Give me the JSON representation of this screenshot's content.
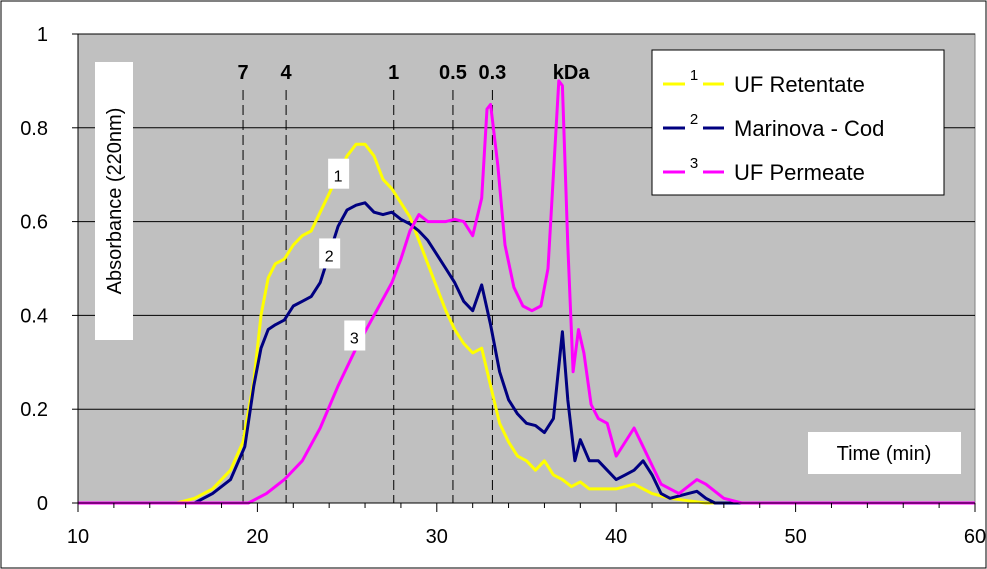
{
  "chart_data": {
    "type": "line",
    "xlabel": "Time (min)",
    "ylabel": "Absorbance (220nm)",
    "xlim": [
      10,
      60
    ],
    "ylim": [
      0,
      1
    ],
    "x_ticks": [
      "10",
      "20",
      "30",
      "40",
      "50",
      "60"
    ],
    "x_tick_values": [
      10,
      20,
      30,
      40,
      50,
      60
    ],
    "y_ticks": [
      "0",
      "0.2",
      "0.4",
      "0.6",
      "0.8",
      "1"
    ],
    "y_tick_values": [
      0,
      0.2,
      0.4,
      0.6,
      0.8,
      1
    ],
    "grid": "horizontal",
    "plot_background": "#c0c0c0",
    "legend_position": "top-right",
    "mw_markers": [
      {
        "label": "7",
        "x": 19.2
      },
      {
        "label": "4",
        "x": 21.6
      },
      {
        "label": "1",
        "x": 27.6
      },
      {
        "label": "0.5",
        "x": 30.9
      },
      {
        "label": "0.3",
        "x": 33.1
      }
    ],
    "mw_unit": "kDa",
    "series": [
      {
        "name": "UF Retentate",
        "number": "1",
        "color": "#ffff00",
        "points": [
          [
            10,
            0
          ],
          [
            15.5,
            0
          ],
          [
            16.5,
            0.01
          ],
          [
            17.5,
            0.03
          ],
          [
            18.5,
            0.07
          ],
          [
            19.2,
            0.13
          ],
          [
            19.8,
            0.26
          ],
          [
            20.2,
            0.4
          ],
          [
            20.6,
            0.48
          ],
          [
            21.0,
            0.51
          ],
          [
            21.5,
            0.52
          ],
          [
            22.0,
            0.55
          ],
          [
            22.5,
            0.57
          ],
          [
            23.0,
            0.58
          ],
          [
            23.5,
            0.62
          ],
          [
            24.0,
            0.66
          ],
          [
            24.5,
            0.7
          ],
          [
            25.0,
            0.74
          ],
          [
            25.5,
            0.765
          ],
          [
            26.0,
            0.765
          ],
          [
            26.5,
            0.74
          ],
          [
            27.0,
            0.69
          ],
          [
            27.5,
            0.67
          ],
          [
            28.0,
            0.64
          ],
          [
            28.5,
            0.61
          ],
          [
            29.0,
            0.56
          ],
          [
            29.5,
            0.51
          ],
          [
            30.0,
            0.46
          ],
          [
            30.5,
            0.41
          ],
          [
            31.0,
            0.37
          ],
          [
            31.5,
            0.34
          ],
          [
            32.0,
            0.32
          ],
          [
            32.5,
            0.33
          ],
          [
            33.0,
            0.25
          ],
          [
            33.5,
            0.17
          ],
          [
            34.0,
            0.13
          ],
          [
            34.5,
            0.1
          ],
          [
            35.0,
            0.09
          ],
          [
            35.5,
            0.07
          ],
          [
            36.0,
            0.09
          ],
          [
            36.5,
            0.06
          ],
          [
            37.0,
            0.05
          ],
          [
            37.5,
            0.035
          ],
          [
            38.0,
            0.045
          ],
          [
            38.5,
            0.03
          ],
          [
            39.0,
            0.03
          ],
          [
            40.0,
            0.03
          ],
          [
            41.0,
            0.04
          ],
          [
            42.0,
            0.02
          ],
          [
            43.0,
            0.01
          ],
          [
            44.0,
            0.005
          ],
          [
            45.0,
            0
          ],
          [
            60,
            0
          ]
        ]
      },
      {
        "name": "Marinova - Cod",
        "number": "2",
        "color": "#000080",
        "points": [
          [
            10,
            0
          ],
          [
            16.5,
            0
          ],
          [
            17.5,
            0.02
          ],
          [
            18.5,
            0.05
          ],
          [
            19.3,
            0.12
          ],
          [
            19.8,
            0.25
          ],
          [
            20.2,
            0.33
          ],
          [
            20.6,
            0.37
          ],
          [
            21.0,
            0.38
          ],
          [
            21.5,
            0.39
          ],
          [
            22.0,
            0.42
          ],
          [
            22.5,
            0.43
          ],
          [
            23.0,
            0.44
          ],
          [
            23.5,
            0.47
          ],
          [
            24.0,
            0.53
          ],
          [
            24.5,
            0.59
          ],
          [
            25.0,
            0.625
          ],
          [
            25.5,
            0.635
          ],
          [
            26.0,
            0.64
          ],
          [
            26.5,
            0.62
          ],
          [
            27.0,
            0.615
          ],
          [
            27.5,
            0.62
          ],
          [
            28.0,
            0.605
          ],
          [
            28.5,
            0.595
          ],
          [
            29.0,
            0.58
          ],
          [
            29.5,
            0.56
          ],
          [
            30.0,
            0.53
          ],
          [
            30.5,
            0.5
          ],
          [
            31.0,
            0.47
          ],
          [
            31.5,
            0.43
          ],
          [
            32.0,
            0.41
          ],
          [
            32.5,
            0.465
          ],
          [
            33.0,
            0.38
          ],
          [
            33.5,
            0.28
          ],
          [
            34.0,
            0.22
          ],
          [
            34.5,
            0.19
          ],
          [
            35.0,
            0.17
          ],
          [
            35.5,
            0.165
          ],
          [
            36.0,
            0.15
          ],
          [
            36.5,
            0.18
          ],
          [
            37.0,
            0.365
          ],
          [
            37.3,
            0.22
          ],
          [
            37.7,
            0.09
          ],
          [
            38.0,
            0.135
          ],
          [
            38.5,
            0.09
          ],
          [
            39.0,
            0.09
          ],
          [
            39.5,
            0.07
          ],
          [
            40.0,
            0.05
          ],
          [
            40.5,
            0.06
          ],
          [
            41.0,
            0.07
          ],
          [
            41.5,
            0.09
          ],
          [
            42.0,
            0.06
          ],
          [
            42.5,
            0.02
          ],
          [
            43.0,
            0.01
          ],
          [
            44.0,
            0.02
          ],
          [
            44.5,
            0.025
          ],
          [
            45.0,
            0.01
          ],
          [
            45.5,
            0
          ],
          [
            60,
            0
          ]
        ]
      },
      {
        "name": "UF Permeate",
        "number": "3",
        "color": "#ff00ff",
        "points": [
          [
            10,
            0
          ],
          [
            19.5,
            0
          ],
          [
            20.5,
            0.02
          ],
          [
            21.5,
            0.05
          ],
          [
            22.5,
            0.09
          ],
          [
            23.5,
            0.16
          ],
          [
            24.5,
            0.25
          ],
          [
            25.5,
            0.33
          ],
          [
            26.5,
            0.4
          ],
          [
            27.5,
            0.47
          ],
          [
            28.0,
            0.52
          ],
          [
            28.5,
            0.58
          ],
          [
            29.0,
            0.615
          ],
          [
            29.5,
            0.6
          ],
          [
            30.0,
            0.6
          ],
          [
            30.5,
            0.6
          ],
          [
            31.0,
            0.605
          ],
          [
            31.5,
            0.6
          ],
          [
            32.0,
            0.57
          ],
          [
            32.5,
            0.65
          ],
          [
            32.8,
            0.84
          ],
          [
            33.0,
            0.85
          ],
          [
            33.4,
            0.72
          ],
          [
            33.8,
            0.55
          ],
          [
            34.3,
            0.46
          ],
          [
            34.8,
            0.42
          ],
          [
            35.3,
            0.41
          ],
          [
            35.8,
            0.42
          ],
          [
            36.2,
            0.5
          ],
          [
            36.5,
            0.7
          ],
          [
            36.8,
            0.9
          ],
          [
            37.0,
            0.89
          ],
          [
            37.3,
            0.55
          ],
          [
            37.6,
            0.28
          ],
          [
            37.9,
            0.37
          ],
          [
            38.2,
            0.32
          ],
          [
            38.6,
            0.21
          ],
          [
            39.0,
            0.18
          ],
          [
            39.5,
            0.17
          ],
          [
            40.0,
            0.1
          ],
          [
            40.5,
            0.13
          ],
          [
            41.0,
            0.16
          ],
          [
            41.5,
            0.12
          ],
          [
            42.0,
            0.08
          ],
          [
            42.5,
            0.04
          ],
          [
            43.5,
            0.02
          ],
          [
            44.5,
            0.05
          ],
          [
            45.0,
            0.04
          ],
          [
            46.0,
            0.01
          ],
          [
            47.0,
            0
          ],
          [
            60,
            0
          ]
        ]
      }
    ],
    "curve_labels": [
      {
        "text": "1",
        "x": 24.5,
        "y": 0.7
      },
      {
        "text": "2",
        "x": 24.0,
        "y": 0.53
      },
      {
        "text": "3",
        "x": 25.4,
        "y": 0.355
      }
    ]
  }
}
